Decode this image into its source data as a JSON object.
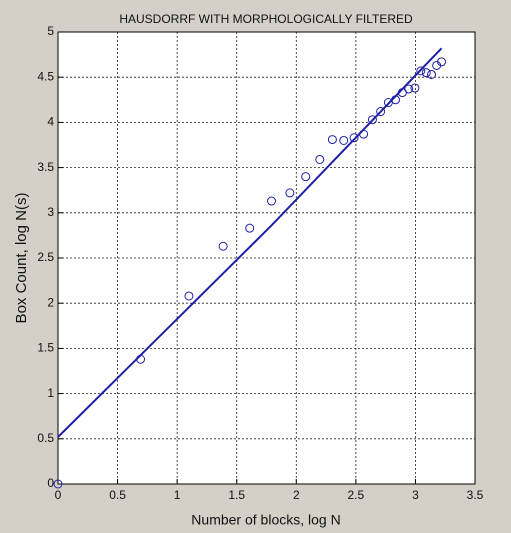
{
  "chart_data": {
    "type": "scatter",
    "title": "HAUSDORRF WITH MORPHOLOGICALLY FILTERED",
    "xlabel": "Number of blocks, log N",
    "ylabel": "Box Count, log N(s)",
    "xlim": [
      0,
      3.5
    ],
    "xticks": [
      0,
      0.5,
      1,
      1.5,
      2,
      2.5,
      3,
      3.5
    ],
    "ylim": [
      0,
      5
    ],
    "yticks": [
      0,
      0.5,
      1,
      1.5,
      2,
      2.5,
      3,
      3.5,
      4,
      4.5,
      5
    ],
    "grid": true,
    "series": [
      {
        "type": "scatter",
        "color": "#1f1fa8",
        "x": [
          0,
          0.693,
          1.099,
          1.386,
          1.609,
          1.792,
          1.946,
          2.079,
          2.197,
          2.303,
          2.398,
          2.485,
          2.565,
          2.639,
          2.708,
          2.773,
          2.833,
          2.89,
          2.944,
          2.996,
          3.045,
          3.091,
          3.135,
          3.178,
          3.219
        ],
        "values": [
          0,
          1.38,
          2.08,
          2.63,
          2.83,
          3.13,
          3.22,
          3.4,
          3.59,
          3.81,
          3.8,
          3.83,
          3.87,
          4.03,
          4.12,
          4.22,
          4.25,
          4.33,
          4.37,
          4.38,
          4.57,
          4.55,
          4.53,
          4.63,
          4.67
        ]
      },
      {
        "type": "line",
        "color": "#1f1fa8",
        "x": [
          0,
          1.792,
          3.219
        ],
        "values": [
          0.52,
          2.86,
          4.82
        ]
      }
    ]
  }
}
